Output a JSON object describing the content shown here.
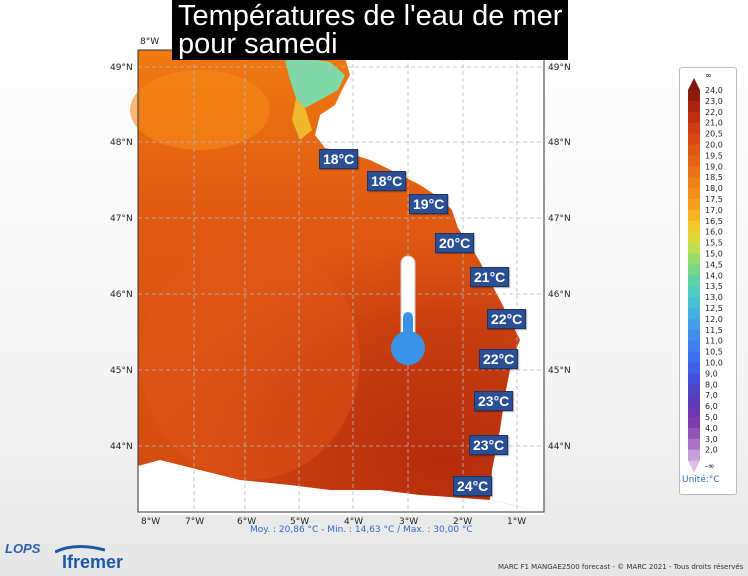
{
  "title": "Températures de l'eau de mer\npour samedi",
  "axes": {
    "top_lon_label": "8°W",
    "bottom_lon_labels": [
      "8°W",
      "7°W",
      "6°W",
      "5°W",
      "4°W",
      "3°W",
      "2°W",
      "1°W"
    ],
    "left_lat_labels": [
      "49°N",
      "48°N",
      "47°N",
      "46°N",
      "45°N",
      "44°N"
    ],
    "right_lat_labels": [
      "49°N",
      "48°N",
      "47°N",
      "46°N",
      "45°N",
      "44°N"
    ]
  },
  "temperature_labels": [
    "18°C",
    "18°C",
    "19°C",
    "20°C",
    "21°C",
    "22°C",
    "22°C",
    "23°C",
    "23°C",
    "24°C"
  ],
  "stats": "Moy. : 20,86 °C   -   Min. : 14,63 °C / Max. : 30,00 °C",
  "legend": {
    "top_symbol": "∞",
    "bottom_symbol": "-∞",
    "ticks": [
      "24,0",
      "23,0",
      "22,0",
      "21,0",
      "20,5",
      "20,0",
      "19,5",
      "19,0",
      "18,5",
      "18,0",
      "17,5",
      "17,0",
      "16,5",
      "16,0",
      "15,5",
      "15,0",
      "14,5",
      "14,0",
      "13,5",
      "13,0",
      "12,5",
      "12,0",
      "11,5",
      "11,0",
      "10,5",
      "10,0",
      "9,0",
      "8,0",
      "7,0",
      "6,0",
      "5,0",
      "4,0",
      "3,0",
      "2,0"
    ],
    "unit": "Unité:°C"
  },
  "credits": "MARC F1 MANGAE2500 forecast - © MARC 2021 - Tous droits réservés",
  "logos": {
    "lops": "LOPS",
    "ifremer": "Ifremer"
  },
  "colors": {
    "sea_warm": "#c0360e",
    "sea_mid": "#dd5010",
    "coast_cool": "#7fd9a8",
    "badge": "#2b4f94",
    "land": "#ffffff"
  }
}
